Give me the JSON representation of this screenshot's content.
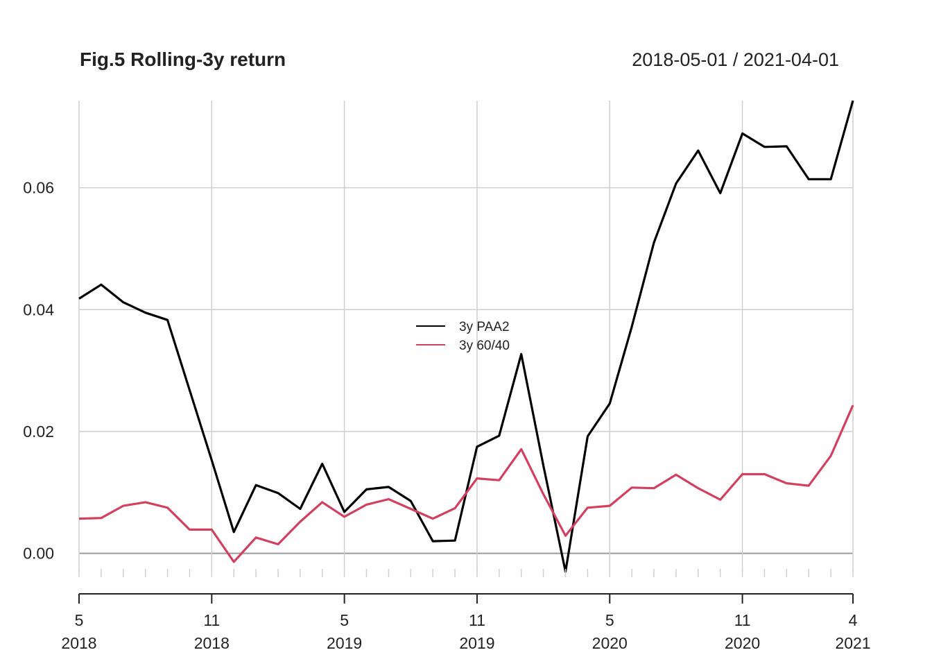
{
  "chart_data": {
    "type": "line",
    "title": "Fig.5 Rolling-3y return",
    "date_range": "2018-05-01 / 2021-04-01",
    "x": [
      "2018-05",
      "2018-06",
      "2018-07",
      "2018-08",
      "2018-09",
      "2018-10",
      "2018-11",
      "2018-12",
      "2019-01",
      "2019-02",
      "2019-03",
      "2019-04",
      "2019-05",
      "2019-06",
      "2019-07",
      "2019-08",
      "2019-09",
      "2019-10",
      "2019-11",
      "2019-12",
      "2020-01",
      "2020-02",
      "2020-03",
      "2020-04",
      "2020-05",
      "2020-06",
      "2020-07",
      "2020-08",
      "2020-09",
      "2020-10",
      "2020-11",
      "2020-12",
      "2021-01",
      "2021-02",
      "2021-03",
      "2021-04"
    ],
    "series": [
      {
        "name": "3y PAA2",
        "color": "#000000",
        "values": [
          0.0418,
          0.0441,
          0.0412,
          0.0395,
          0.0383,
          0.0268,
          0.0153,
          0.0035,
          0.0112,
          0.0099,
          0.0073,
          0.0147,
          0.0068,
          0.0105,
          0.0109,
          0.0086,
          0.002,
          0.0021,
          0.0175,
          0.0193,
          0.0327,
          0.0144,
          -0.003,
          0.0192,
          0.0246,
          0.0372,
          0.051,
          0.0607,
          0.0661,
          0.0591,
          0.0689,
          0.0667,
          0.0668,
          0.0614,
          0.0614,
          0.0743
        ]
      },
      {
        "name": "3y 60/40",
        "color": "#d23f5f",
        "values": [
          0.0057,
          0.0058,
          0.0078,
          0.0084,
          0.0075,
          0.0039,
          0.0039,
          -0.0014,
          0.0026,
          0.0015,
          0.0052,
          0.0084,
          0.006,
          0.008,
          0.0089,
          0.0073,
          0.0057,
          0.0074,
          0.0123,
          0.012,
          0.0171,
          0.0097,
          0.0029,
          0.0075,
          0.0078,
          0.0108,
          0.0107,
          0.0129,
          0.0107,
          0.0088,
          0.013,
          0.013,
          0.0115,
          0.0111,
          0.016,
          0.0243
        ]
      }
    ],
    "y_ticks": [
      "0.00",
      "0.02",
      "0.04",
      "0.06"
    ],
    "y_tick_values": [
      0,
      0.02,
      0.04,
      0.06
    ],
    "ylim": [
      -0.003,
      0.0743
    ],
    "x_ticks": [
      {
        "month": "5",
        "year": "2018",
        "index": 0
      },
      {
        "month": "11",
        "year": "2018",
        "index": 6
      },
      {
        "month": "5",
        "year": "2019",
        "index": 12
      },
      {
        "month": "11",
        "year": "2019",
        "index": 18
      },
      {
        "month": "5",
        "year": "2020",
        "index": 24
      },
      {
        "month": "11",
        "year": "2020",
        "index": 30
      },
      {
        "month": "4",
        "year": "2021",
        "index": 35
      }
    ],
    "grid": true,
    "legend_position": "center"
  }
}
